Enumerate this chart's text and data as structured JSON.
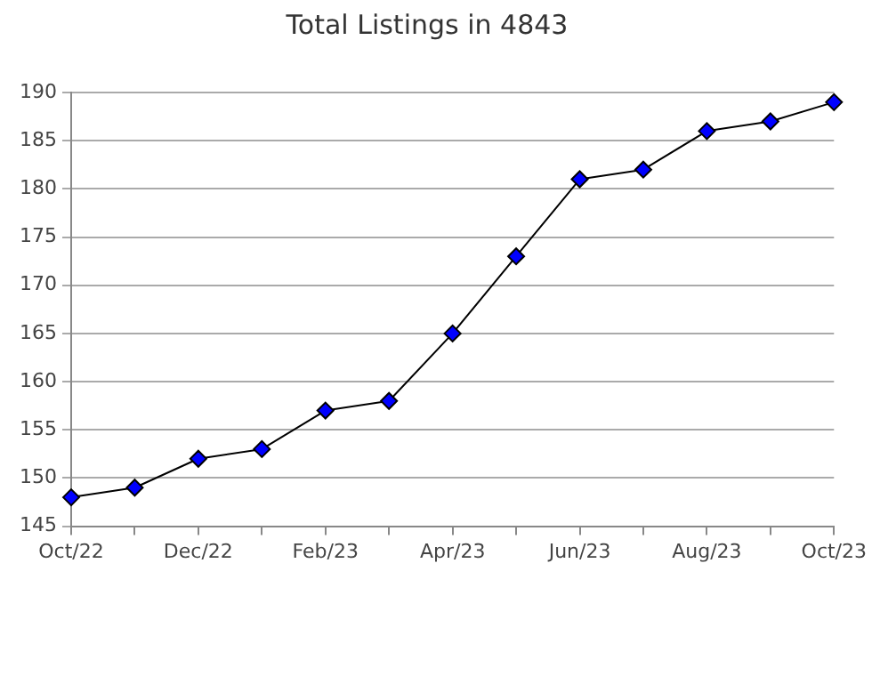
{
  "chart_data": {
    "type": "line",
    "title": "Total Listings in 4843",
    "categories": [
      "Oct/22",
      null,
      "Dec/22",
      null,
      "Feb/23",
      null,
      "Apr/23",
      null,
      "Jun/23",
      null,
      "Aug/23",
      null,
      "Oct/23"
    ],
    "series": [
      {
        "color": "#0000ff",
        "values": [
          148,
          149,
          152,
          153,
          157,
          158,
          165,
          173,
          181,
          182,
          186,
          187,
          189
        ]
      }
    ],
    "ylim": [
      145,
      190
    ],
    "yticks": [
      145,
      150,
      155,
      160,
      165,
      170,
      175,
      180,
      185,
      190
    ],
    "grid": "y",
    "legend": false,
    "marker": "diamond",
    "line_style": "solid"
  }
}
